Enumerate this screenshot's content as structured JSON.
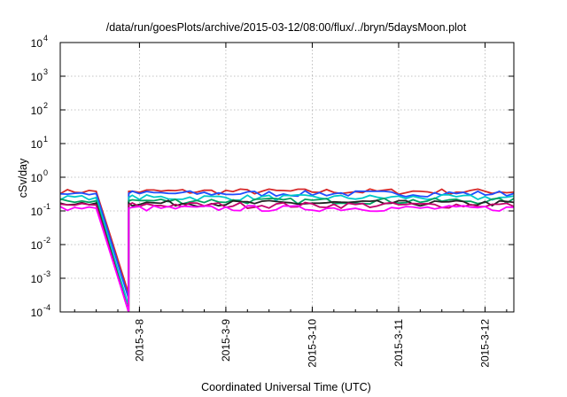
{
  "chart_data": {
    "type": "line",
    "title": "/data/run/goesPlots/archive/2015-03-12/08:00/flux/../bryn/5daysMoon.plot",
    "xlabel": "Coordinated Universal Time (UTC)",
    "ylabel": "cSv/day",
    "yscale": "log",
    "ylim": [
      0.0001,
      10000
    ],
    "xlim": [
      "2015-03-07 02:00",
      "2015-03-12 08:00"
    ],
    "x_ticks": [
      "2015-3-8",
      "2015-3-9",
      "2015-3-10",
      "2015-3-11",
      "2015-3-12"
    ],
    "y_ticks": [
      {
        "base": "10",
        "exp": "-4",
        "value": 0.0001
      },
      {
        "base": "10",
        "exp": "-3",
        "value": 0.001
      },
      {
        "base": "10",
        "exp": "-2",
        "value": 0.01
      },
      {
        "base": "10",
        "exp": "-1",
        "value": 0.1
      },
      {
        "base": "10",
        "exp": "0",
        "value": 1
      },
      {
        "base": "10",
        "exp": "1",
        "value": 10
      },
      {
        "base": "10",
        "exp": "2",
        "value": 100
      },
      {
        "base": "10",
        "exp": "3",
        "value": 1000
      },
      {
        "base": "10",
        "exp": "4",
        "value": 10000
      }
    ],
    "grid": true,
    "legend": "none",
    "series": [
      {
        "color": "#d62728",
        "level": 0.38
      },
      {
        "color": "#1f4fff",
        "level": 0.33
      },
      {
        "color": "#00c8c8",
        "level": 0.25
      },
      {
        "color": "#00a060",
        "level": 0.2
      },
      {
        "color": "#222222",
        "level": 0.17
      },
      {
        "color": "#c0006a",
        "level": 0.15
      },
      {
        "color": "#ff00ff",
        "level": 0.12
      }
    ],
    "gap": {
      "start": "2015-03-07 12:00",
      "end": "2015-03-07 21:00"
    },
    "decay_end": [
      0.00035,
      0.00025,
      0.00015,
      0.0001,
      0.0001,
      0.0001,
      0.0001
    ]
  }
}
